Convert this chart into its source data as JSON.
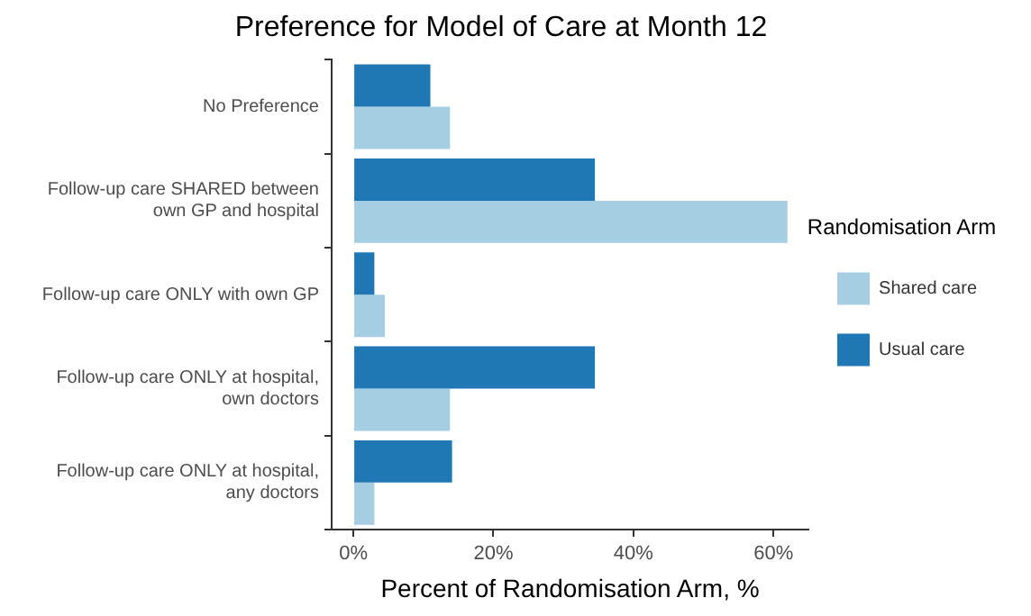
{
  "chart_data": {
    "type": "bar",
    "orientation": "horizontal",
    "title": "Preference for Model of Care at Month 12",
    "xlabel": "Percent of Randomisation Arm, %",
    "legend_title": "Randomisation Arm",
    "categories": [
      "No Preference",
      "Follow-up care SHARED between own GP and hospital",
      "Follow-up care ONLY with own GP",
      "Follow-up care ONLY at hospital, own doctors",
      "Follow-up care ONLY at hospital, any doctors"
    ],
    "series": [
      {
        "name": "Shared care",
        "color": "#a6cee3",
        "values": [
          13.8,
          62,
          4.5,
          13.8,
          3
        ]
      },
      {
        "name": "Usual care",
        "color": "#1f78b4",
        "values": [
          11,
          34.5,
          3,
          34.5,
          14.1
        ]
      }
    ],
    "xlim": [
      -3.1,
      65
    ],
    "xticks": [
      {
        "value": 0,
        "label": "0%"
      },
      {
        "value": 20,
        "label": "20%"
      },
      {
        "value": 40,
        "label": "40%"
      },
      {
        "value": 60,
        "label": "60%"
      }
    ],
    "grid": false,
    "legend": "right"
  }
}
